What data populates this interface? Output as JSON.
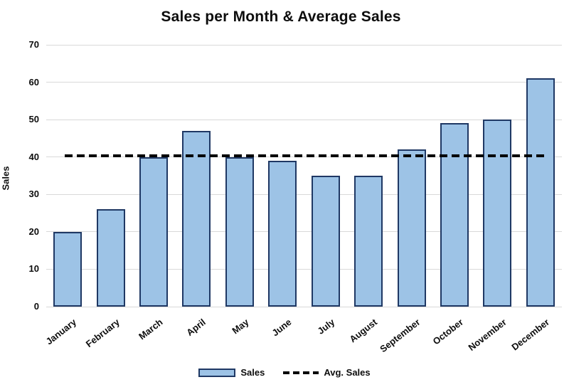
{
  "chart_data": {
    "type": "bar",
    "title": "Sales per Month & Average Sales",
    "xlabel": "",
    "ylabel": "Sales",
    "categories": [
      "January",
      "February",
      "March",
      "April",
      "May",
      "June",
      "July",
      "August",
      "September",
      "October",
      "November",
      "December"
    ],
    "series": [
      {
        "name": "Sales",
        "type": "bar",
        "values": [
          20,
          26,
          40,
          47,
          40,
          39,
          35,
          35,
          42,
          49,
          50,
          61
        ]
      },
      {
        "name": "Avg. Sales",
        "type": "line",
        "style": "dashed",
        "value": 40.33
      }
    ],
    "ylim": [
      0,
      70
    ],
    "yticks": [
      0,
      10,
      20,
      30,
      40,
      50,
      60,
      70
    ],
    "grid": true,
    "legend_position": "bottom",
    "colors": {
      "bar_fill": "#9DC3E6",
      "bar_border": "#1F3864",
      "avg_line": "#000000",
      "gridline": "#D9D9D9",
      "text": "#0D0D0D",
      "background": "#FFFFFF"
    }
  },
  "legend": {
    "items": [
      {
        "label": "Sales",
        "swatch": "bar-swatch"
      },
      {
        "label": "Avg. Sales",
        "swatch": "dashed-line-swatch"
      }
    ]
  }
}
